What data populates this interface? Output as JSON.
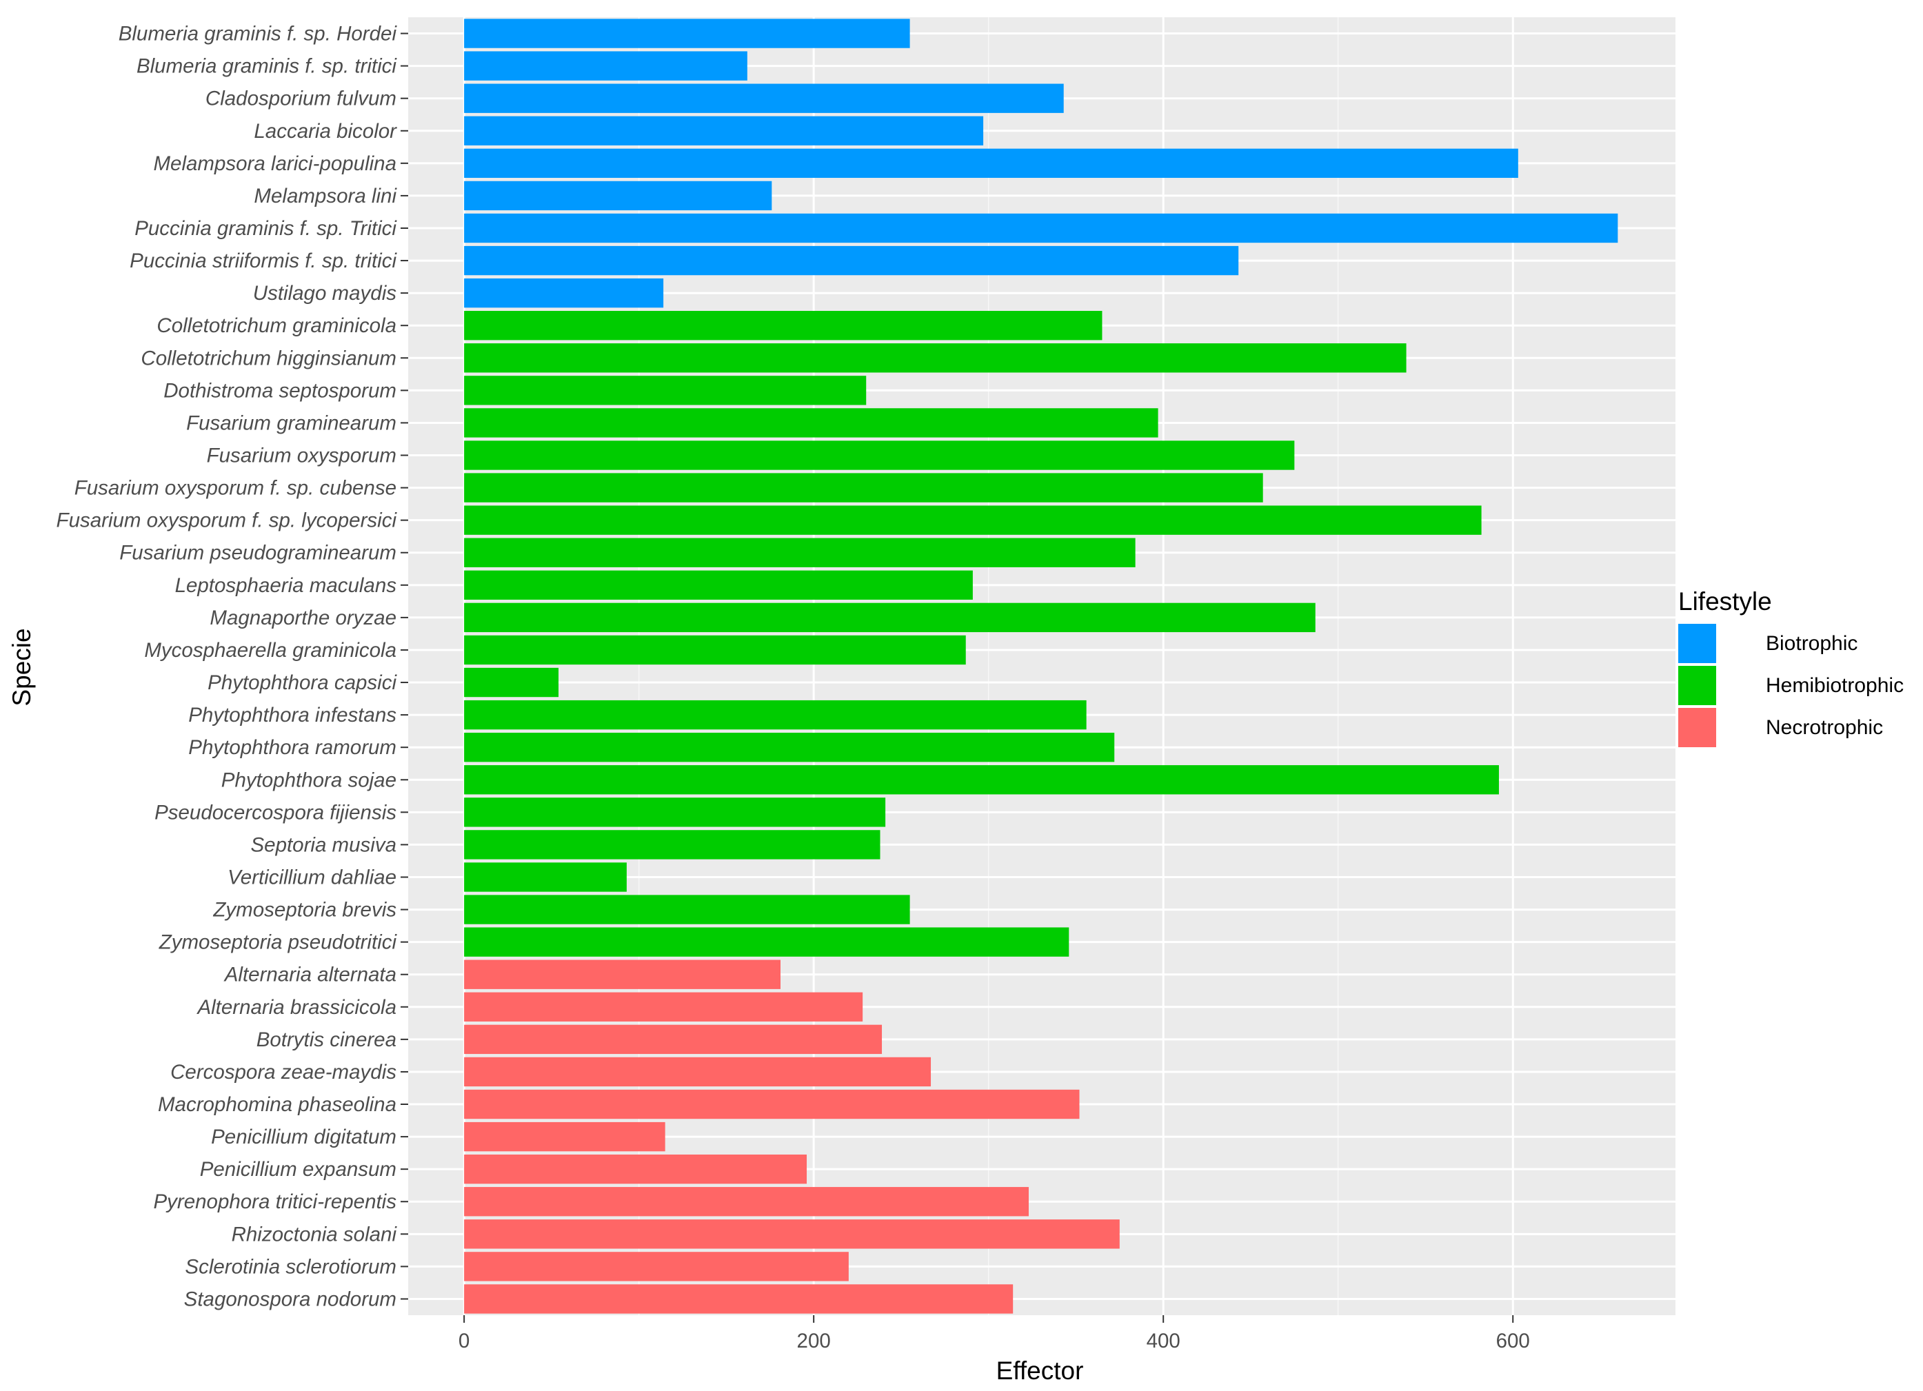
{
  "chart_data": {
    "type": "bar",
    "orientation": "horizontal",
    "title": "",
    "xlabel": "Effector",
    "ylabel": "Specie",
    "xlim": [
      -32,
      693
    ],
    "xticks": [
      0,
      200,
      400,
      600
    ],
    "xtick_labels": [
      "0",
      "200",
      "400",
      "600"
    ],
    "grid": true,
    "legend": {
      "title": "Lifestyle",
      "position": "right",
      "entries": [
        {
          "name": "Biotrophic",
          "color": "#0099FF"
        },
        {
          "name": "Hemibiotrophic",
          "color": "#00CC00"
        },
        {
          "name": "Necrotrophic",
          "color": "#FF6666"
        }
      ]
    },
    "categories": [
      "Blumeria graminis f. sp. Hordei",
      "Blumeria graminis f. sp. tritici",
      "Cladosporium fulvum",
      "Laccaria bicolor",
      "Melampsora larici-populina",
      "Melampsora lini",
      "Puccinia graminis f. sp. Tritici",
      "Puccinia striiformis f. sp. tritici",
      "Ustilago maydis",
      "Colletotrichum graminicola",
      "Colletotrichum higginsianum",
      "Dothistroma septosporum",
      "Fusarium graminearum",
      "Fusarium oxysporum",
      "Fusarium oxysporum f. sp. cubense",
      "Fusarium oxysporum f. sp. lycopersici",
      "Fusarium pseudograminearum",
      "Leptosphaeria maculans",
      "Magnaporthe oryzae",
      "Mycosphaerella graminicola",
      "Phytophthora capsici",
      "Phytophthora infestans",
      "Phytophthora ramorum",
      "Phytophthora sojae",
      "Pseudocercospora fijiensis",
      "Septoria musiva",
      "Verticillium dahliae",
      "Zymoseptoria brevis",
      "Zymoseptoria pseudotritici",
      "Alternaria alternata",
      "Alternaria brassicicola",
      "Botrytis cinerea",
      "Cercospora zeae-maydis",
      "Macrophomina phaseolina",
      "Penicillium digitatum",
      "Penicillium expansum",
      "Pyrenophora tritici-repentis",
      "Rhizoctonia solani",
      "Sclerotinia sclerotiorum",
      "Stagonospora nodorum"
    ],
    "values": [
      255,
      162,
      343,
      297,
      603,
      176,
      660,
      443,
      114,
      365,
      539,
      230,
      397,
      475,
      457,
      582,
      384,
      291,
      487,
      287,
      54,
      356,
      372,
      592,
      241,
      238,
      93,
      255,
      346,
      181,
      228,
      239,
      267,
      352,
      115,
      196,
      323,
      375,
      220,
      314
    ],
    "groups": [
      "Biotrophic",
      "Biotrophic",
      "Biotrophic",
      "Biotrophic",
      "Biotrophic",
      "Biotrophic",
      "Biotrophic",
      "Biotrophic",
      "Biotrophic",
      "Hemibiotrophic",
      "Hemibiotrophic",
      "Hemibiotrophic",
      "Hemibiotrophic",
      "Hemibiotrophic",
      "Hemibiotrophic",
      "Hemibiotrophic",
      "Hemibiotrophic",
      "Hemibiotrophic",
      "Hemibiotrophic",
      "Hemibiotrophic",
      "Hemibiotrophic",
      "Hemibiotrophic",
      "Hemibiotrophic",
      "Hemibiotrophic",
      "Hemibiotrophic",
      "Hemibiotrophic",
      "Hemibiotrophic",
      "Hemibiotrophic",
      "Hemibiotrophic",
      "Necrotrophic",
      "Necrotrophic",
      "Necrotrophic",
      "Necrotrophic",
      "Necrotrophic",
      "Necrotrophic",
      "Necrotrophic",
      "Necrotrophic",
      "Necrotrophic",
      "Necrotrophic",
      "Necrotrophic"
    ]
  }
}
